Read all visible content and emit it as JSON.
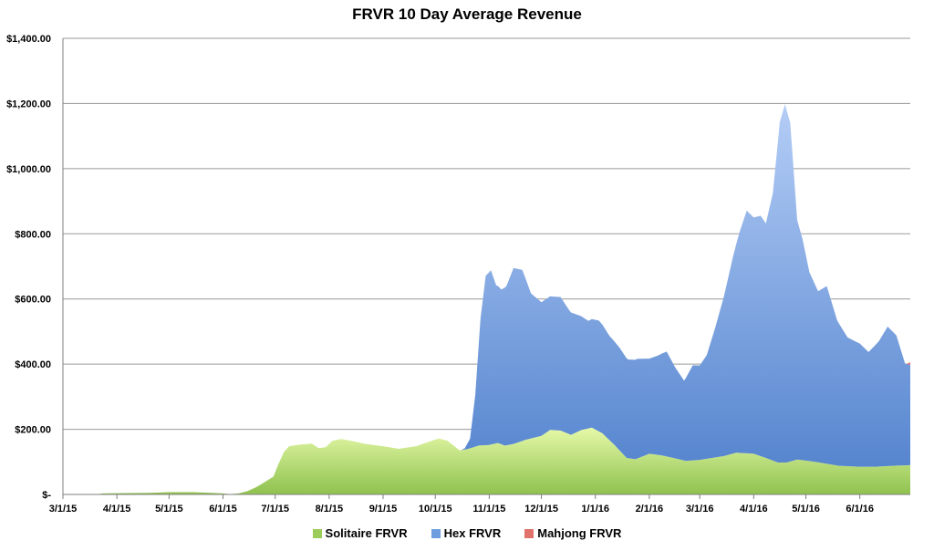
{
  "chart_data": {
    "type": "area",
    "stacked": true,
    "title": "FRVR 10 Day Average Revenue",
    "xlabel": "",
    "ylabel": "",
    "ylim": [
      0,
      1400
    ],
    "yticks": [
      {
        "value": 0,
        "label": "$-"
      },
      {
        "value": 200,
        "label": "$200.00"
      },
      {
        "value": 400,
        "label": "$400.00"
      },
      {
        "value": 600,
        "label": "$600.00"
      },
      {
        "value": 800,
        "label": "$800.00"
      },
      {
        "value": 1000,
        "label": "$1,000.00"
      },
      {
        "value": 1200,
        "label": "$1,200.00"
      },
      {
        "value": 1400,
        "label": "$1,400.00"
      }
    ],
    "xlim": [
      "2015-03-01",
      "2016-06-30"
    ],
    "xticks": [
      {
        "value": "2015-03-01",
        "label": "3/1/15"
      },
      {
        "value": "2015-04-01",
        "label": "4/1/15"
      },
      {
        "value": "2015-05-01",
        "label": "5/1/15"
      },
      {
        "value": "2015-06-01",
        "label": "6/1/15"
      },
      {
        "value": "2015-07-01",
        "label": "7/1/15"
      },
      {
        "value": "2015-08-01",
        "label": "8/1/15"
      },
      {
        "value": "2015-09-01",
        "label": "9/1/15"
      },
      {
        "value": "2015-10-01",
        "label": "10/1/15"
      },
      {
        "value": "2015-11-01",
        "label": "11/1/15"
      },
      {
        "value": "2015-12-01",
        "label": "12/1/15"
      },
      {
        "value": "2016-01-01",
        "label": "1/1/16"
      },
      {
        "value": "2016-02-01",
        "label": "2/1/16"
      },
      {
        "value": "2016-03-01",
        "label": "3/1/16"
      },
      {
        "value": "2016-04-01",
        "label": "4/1/16"
      },
      {
        "value": "2016-05-01",
        "label": "5/1/16"
      },
      {
        "value": "2016-06-01",
        "label": "6/1/16"
      }
    ],
    "grid": true,
    "legend": "bottom",
    "series": [
      {
        "name": "Solitaire FRVR",
        "color": "#9ccc5a",
        "points": [
          [
            "2015-03-01",
            0
          ],
          [
            "2015-03-20",
            0
          ],
          [
            "2015-03-24",
            3
          ],
          [
            "2015-04-01",
            4
          ],
          [
            "2015-04-20",
            5
          ],
          [
            "2015-05-01",
            7
          ],
          [
            "2015-05-15",
            7
          ],
          [
            "2015-05-25",
            5
          ],
          [
            "2015-06-01",
            3
          ],
          [
            "2015-06-05",
            1
          ],
          [
            "2015-06-10",
            3
          ],
          [
            "2015-06-15",
            10
          ],
          [
            "2015-06-20",
            22
          ],
          [
            "2015-06-25",
            38
          ],
          [
            "2015-06-30",
            55
          ],
          [
            "2015-07-03",
            95
          ],
          [
            "2015-07-06",
            130
          ],
          [
            "2015-07-09",
            148
          ],
          [
            "2015-07-15",
            153
          ],
          [
            "2015-07-22",
            156
          ],
          [
            "2015-07-26",
            142
          ],
          [
            "2015-07-30",
            145
          ],
          [
            "2015-08-03",
            165
          ],
          [
            "2015-08-08",
            170
          ],
          [
            "2015-08-15",
            163
          ],
          [
            "2015-08-22",
            155
          ],
          [
            "2015-09-01",
            148
          ],
          [
            "2015-09-10",
            140
          ],
          [
            "2015-09-20",
            148
          ],
          [
            "2015-09-28",
            163
          ],
          [
            "2015-10-03",
            172
          ],
          [
            "2015-10-08",
            165
          ],
          [
            "2015-10-15",
            135
          ],
          [
            "2015-10-20",
            140
          ],
          [
            "2015-10-26",
            150
          ],
          [
            "2015-11-01",
            152
          ],
          [
            "2015-11-06",
            158
          ],
          [
            "2015-11-10",
            150
          ],
          [
            "2015-11-15",
            155
          ],
          [
            "2015-11-22",
            168
          ],
          [
            "2015-12-01",
            180
          ],
          [
            "2015-12-06",
            198
          ],
          [
            "2015-12-12",
            196
          ],
          [
            "2015-12-18",
            183
          ],
          [
            "2015-12-24",
            198
          ],
          [
            "2015-12-30",
            205
          ],
          [
            "2016-01-05",
            188
          ],
          [
            "2016-01-12",
            152
          ],
          [
            "2016-01-19",
            112
          ],
          [
            "2016-01-24",
            108
          ],
          [
            "2016-02-01",
            125
          ],
          [
            "2016-02-08",
            120
          ],
          [
            "2016-02-15",
            112
          ],
          [
            "2016-02-22",
            103
          ],
          [
            "2016-03-01",
            106
          ],
          [
            "2016-03-08",
            112
          ],
          [
            "2016-03-15",
            118
          ],
          [
            "2016-03-22",
            128
          ],
          [
            "2016-04-01",
            125
          ],
          [
            "2016-04-08",
            112
          ],
          [
            "2016-04-15",
            98
          ],
          [
            "2016-04-20",
            98
          ],
          [
            "2016-04-26",
            107
          ],
          [
            "2016-05-01",
            104
          ],
          [
            "2016-05-10",
            97
          ],
          [
            "2016-05-20",
            88
          ],
          [
            "2016-06-01",
            85
          ],
          [
            "2016-06-10",
            85
          ],
          [
            "2016-06-20",
            88
          ],
          [
            "2016-06-30",
            90
          ]
        ]
      },
      {
        "name": "Hex FRVR",
        "color": "#6e9ee0",
        "points": [
          [
            "2015-03-01",
            0
          ],
          [
            "2015-10-16",
            0
          ],
          [
            "2015-10-18",
            4
          ],
          [
            "2015-10-21",
            30
          ],
          [
            "2015-10-24",
            160
          ],
          [
            "2015-10-27",
            390
          ],
          [
            "2015-10-30",
            520
          ],
          [
            "2015-11-02",
            535
          ],
          [
            "2015-11-05",
            485
          ],
          [
            "2015-11-08",
            475
          ],
          [
            "2015-11-11",
            490
          ],
          [
            "2015-11-15",
            540
          ],
          [
            "2015-11-20",
            525
          ],
          [
            "2015-11-25",
            445
          ],
          [
            "2015-12-01",
            410
          ],
          [
            "2015-12-05",
            410
          ],
          [
            "2015-12-12",
            410
          ],
          [
            "2015-12-17",
            380
          ],
          [
            "2015-12-22",
            358
          ],
          [
            "2015-12-28",
            330
          ],
          [
            "2016-01-03",
            340
          ],
          [
            "2016-01-09",
            320
          ],
          [
            "2016-01-15",
            315
          ],
          [
            "2016-01-20",
            303
          ],
          [
            "2016-01-25",
            306
          ],
          [
            "2016-02-01",
            292
          ],
          [
            "2016-02-06",
            305
          ],
          [
            "2016-02-11",
            322
          ],
          [
            "2016-02-16",
            278
          ],
          [
            "2016-02-21",
            245
          ],
          [
            "2016-02-26",
            292
          ],
          [
            "2016-03-01",
            290
          ],
          [
            "2016-03-05",
            318
          ],
          [
            "2016-03-10",
            400
          ],
          [
            "2016-03-15",
            492
          ],
          [
            "2016-03-20",
            602
          ],
          [
            "2016-03-24",
            680
          ],
          [
            "2016-03-28",
            745
          ],
          [
            "2016-04-01",
            725
          ],
          [
            "2016-04-05",
            738
          ],
          [
            "2016-04-08",
            720
          ],
          [
            "2016-04-12",
            820
          ],
          [
            "2016-04-16",
            1045
          ],
          [
            "2016-04-19",
            1100
          ],
          [
            "2016-04-22",
            1040
          ],
          [
            "2016-04-26",
            735
          ],
          [
            "2016-04-29",
            680
          ],
          [
            "2016-05-03",
            580
          ],
          [
            "2016-05-08",
            525
          ],
          [
            "2016-05-13",
            545
          ],
          [
            "2016-05-19",
            445
          ],
          [
            "2016-05-25",
            395
          ],
          [
            "2016-06-01",
            378
          ],
          [
            "2016-06-06",
            352
          ],
          [
            "2016-06-12",
            385
          ],
          [
            "2016-06-17",
            428
          ],
          [
            "2016-06-22",
            400
          ],
          [
            "2016-06-27",
            312
          ],
          [
            "2016-06-30",
            308
          ]
        ]
      },
      {
        "name": "Mahjong FRVR",
        "color": "#e0716b",
        "points": [
          [
            "2015-03-01",
            0
          ],
          [
            "2016-06-28",
            0
          ],
          [
            "2016-06-29",
            4
          ],
          [
            "2016-06-30",
            8
          ]
        ]
      }
    ]
  }
}
